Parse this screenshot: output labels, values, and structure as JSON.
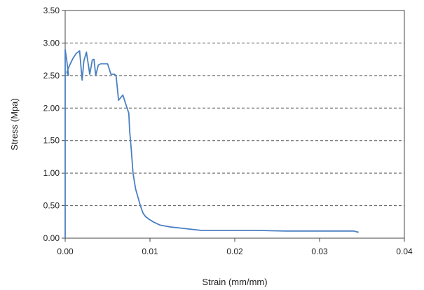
{
  "chart_data": {
    "type": "line",
    "title": "",
    "xlabel": "Strain (mm/mm)",
    "ylabel": "Stress (Mpa)",
    "xlim": [
      0,
      0.04
    ],
    "ylim": [
      0,
      3.5
    ],
    "xticks": [
      0,
      0.01,
      0.02,
      0.03,
      0.04
    ],
    "xtick_labels": [
      "0.00",
      "0.01",
      "0.02",
      "0.03",
      "0.04"
    ],
    "yticks": [
      0,
      0.5,
      1.0,
      1.5,
      2.0,
      2.5,
      3.0,
      3.5
    ],
    "ytick_labels": [
      "0.00",
      "0.50",
      "1.00",
      "1.50",
      "2.00",
      "2.50",
      "3.00",
      "3.50"
    ],
    "grid": "horizontal dashed",
    "legend": "none",
    "line_color": "#4a7fc1",
    "series": [
      {
        "x": [
          0.0,
          0.0,
          0.0002,
          0.0004,
          0.0002,
          0.0005,
          0.0009,
          0.0013,
          0.0017,
          0.002,
          0.0022,
          0.0025,
          0.0029,
          0.0032,
          0.0034,
          0.0036,
          0.0039,
          0.0042,
          0.0045,
          0.0047,
          0.005,
          0.0054,
          0.0058,
          0.006,
          0.0063,
          0.0068,
          0.0071,
          0.0075,
          0.0076,
          0.0078,
          0.008,
          0.0083,
          0.0086,
          0.0088,
          0.009,
          0.0092,
          0.0095,
          0.0099,
          0.0104,
          0.0112,
          0.0125,
          0.014,
          0.016,
          0.018,
          0.02,
          0.0225,
          0.026,
          0.03,
          0.034,
          0.0346
        ],
        "y": [
          0.0,
          2.9,
          2.72,
          2.5,
          2.55,
          2.65,
          2.76,
          2.84,
          2.88,
          2.43,
          2.72,
          2.86,
          2.52,
          2.74,
          2.75,
          2.5,
          2.66,
          2.68,
          2.68,
          2.68,
          2.68,
          2.52,
          2.52,
          2.5,
          2.12,
          2.2,
          2.08,
          1.92,
          1.65,
          1.35,
          1.0,
          0.76,
          0.62,
          0.53,
          0.45,
          0.38,
          0.33,
          0.29,
          0.25,
          0.2,
          0.17,
          0.15,
          0.12,
          0.12,
          0.12,
          0.12,
          0.11,
          0.11,
          0.11,
          0.09
        ]
      }
    ]
  }
}
